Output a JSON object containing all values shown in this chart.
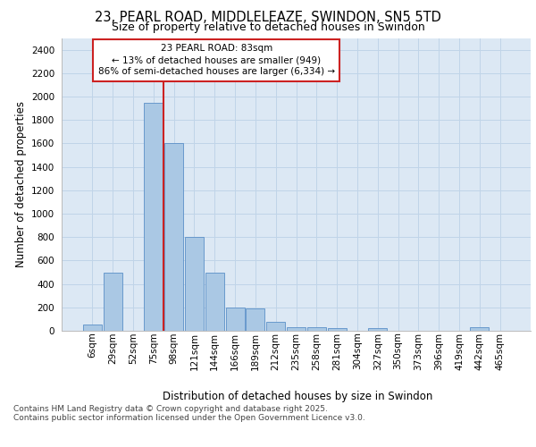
{
  "title_line1": "23, PEARL ROAD, MIDDLELEAZE, SWINDON, SN5 5TD",
  "title_line2": "Size of property relative to detached houses in Swindon",
  "xlabel": "Distribution of detached houses by size in Swindon",
  "ylabel": "Number of detached properties",
  "footer_line1": "Contains HM Land Registry data © Crown copyright and database right 2025.",
  "footer_line2": "Contains public sector information licensed under the Open Government Licence v3.0.",
  "categories": [
    "6sqm",
    "29sqm",
    "52sqm",
    "75sqm",
    "98sqm",
    "121sqm",
    "144sqm",
    "166sqm",
    "189sqm",
    "212sqm",
    "235sqm",
    "258sqm",
    "281sqm",
    "304sqm",
    "327sqm",
    "350sqm",
    "373sqm",
    "396sqm",
    "419sqm",
    "442sqm",
    "465sqm"
  ],
  "values": [
    55,
    500,
    0,
    1950,
    1600,
    800,
    500,
    200,
    190,
    75,
    30,
    30,
    20,
    0,
    20,
    0,
    0,
    0,
    0,
    30,
    0
  ],
  "bar_color": "#aac8e4",
  "bar_edge_color": "#5b90c8",
  "grid_color": "#c0d4e8",
  "background_color": "#dce8f4",
  "vline_color": "#cc2222",
  "vline_position": 3.48,
  "annotation_text": "23 PEARL ROAD: 83sqm\n← 13% of detached houses are smaller (949)\n86% of semi-detached houses are larger (6,334) →",
  "annotation_box_color": "#ffffff",
  "annotation_box_edge": "#cc2222",
  "ylim": [
    0,
    2500
  ],
  "yticks": [
    0,
    200,
    400,
    600,
    800,
    1000,
    1200,
    1400,
    1600,
    1800,
    2000,
    2200,
    2400
  ]
}
